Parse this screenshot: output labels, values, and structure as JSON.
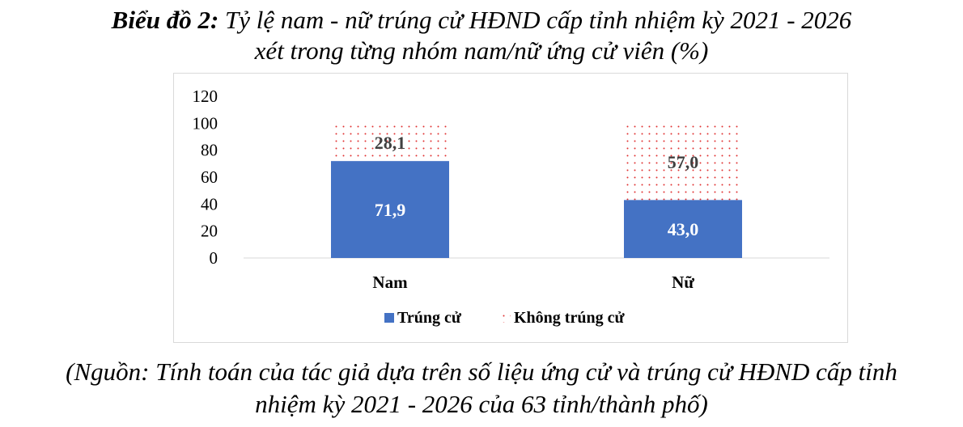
{
  "title": {
    "lead": "Biểu đồ 2:",
    "line1_rest": " Tỷ lệ nam - nữ trúng cử HĐND cấp tỉnh nhiệm kỳ 2021 - 2026",
    "line2": "xét trong từng nhóm nam/nữ ứng cử viên (%)"
  },
  "source": {
    "line1": "(Nguồn: Tính toán của tác giả dựa trên số liệu ứng cử và trúng cử HĐND cấp tỉnh",
    "line2": "nhiệm kỳ 2021 - 2026 của 63 tỉnh/thành phố)"
  },
  "colors": {
    "elected": "#4472c4",
    "not_elected_dot": "#e03030"
  },
  "chart_data": {
    "type": "bar",
    "stacked": true,
    "categories": [
      "Nam",
      "Nữ"
    ],
    "series": [
      {
        "name": "Trúng cử",
        "values": [
          71.9,
          43.0
        ],
        "labels": [
          "71,9",
          "43,0"
        ]
      },
      {
        "name": "Không trúng cử",
        "values": [
          28.1,
          57.0
        ],
        "labels": [
          "28,1",
          "57,0"
        ]
      }
    ],
    "ylim": [
      0,
      120
    ],
    "yticks": [
      0,
      20,
      40,
      60,
      80,
      100,
      120
    ],
    "grid": false,
    "legend": "bottom"
  }
}
